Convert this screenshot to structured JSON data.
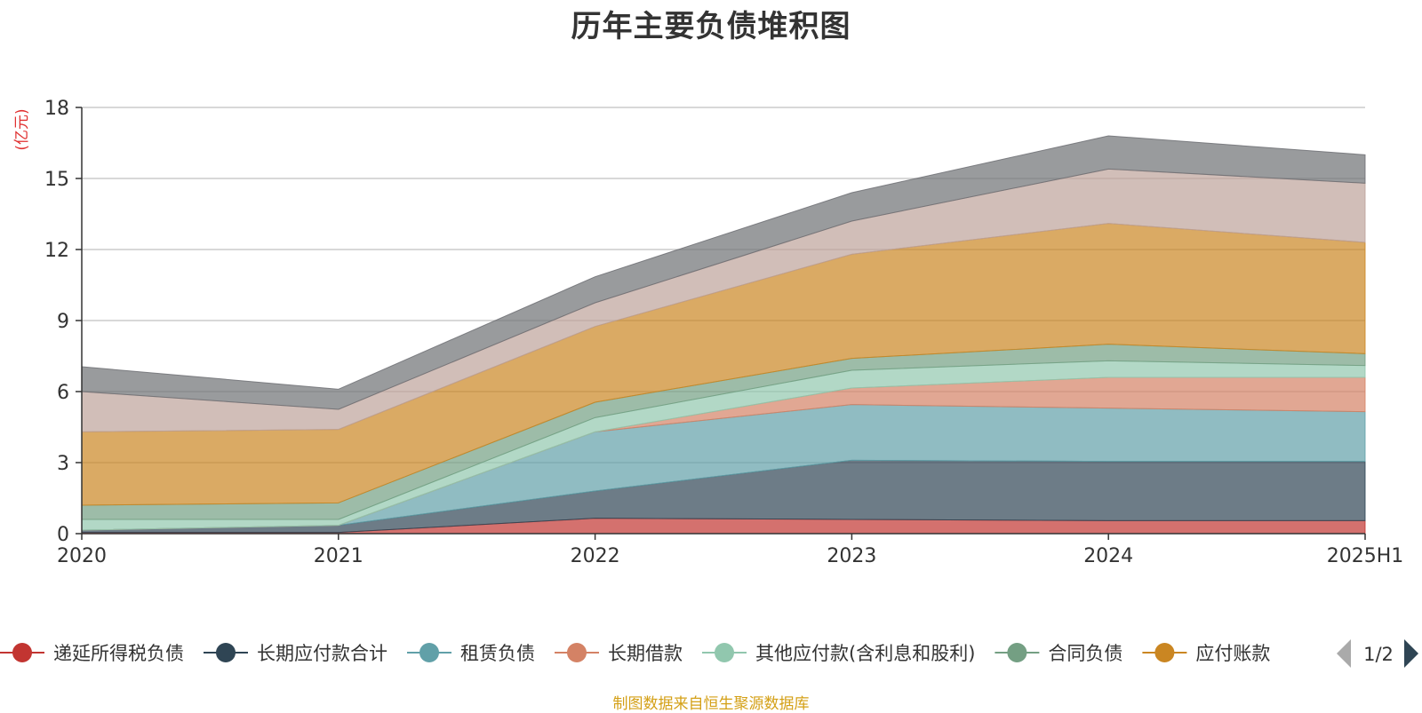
{
  "chart_data": {
    "type": "area",
    "stacked": true,
    "title": "历年主要负债堆积图",
    "ylabel": "(亿元)",
    "xlabel": "",
    "categories": [
      "2020",
      "2021",
      "2022",
      "2023",
      "2024",
      "2025H1"
    ],
    "ylim": [
      0,
      18
    ],
    "yticks": [
      0,
      3,
      6,
      9,
      12,
      15,
      18
    ],
    "grid": true,
    "series": [
      {
        "name": "递延所得税负债",
        "color": "#c23531",
        "values": [
          0.05,
          0.05,
          0.65,
          0.6,
          0.55,
          0.55
        ]
      },
      {
        "name": "长期应付款合计",
        "color": "#2f4554",
        "values": [
          0.1,
          0.3,
          1.15,
          2.5,
          2.5,
          2.5
        ]
      },
      {
        "name": "租赁负债",
        "color": "#61a0a8",
        "values": [
          0,
          0,
          2.5,
          2.35,
          2.25,
          2.1
        ]
      },
      {
        "name": "长期借款",
        "color": "#d48265",
        "values": [
          0,
          0,
          0,
          0.7,
          1.3,
          1.45
        ]
      },
      {
        "name": "其他应付款(含利息和股利)",
        "color": "#91c7ae",
        "values": [
          0.45,
          0.25,
          0.6,
          0.75,
          0.7,
          0.5
        ]
      },
      {
        "name": "合同负债",
        "color": "#749f83",
        "values": [
          0.6,
          0.7,
          0.65,
          0.5,
          0.7,
          0.5
        ]
      },
      {
        "name": "应付账款",
        "color": "#ca8622",
        "values": [
          3.1,
          3.1,
          3.2,
          4.4,
          5.1,
          4.7
        ]
      },
      {
        "name": "",
        "color": "#bda29a",
        "values": [
          1.7,
          0.85,
          1.0,
          1.4,
          2.3,
          2.5
        ]
      },
      {
        "name": "",
        "color": "#6e7074",
        "values": [
          1.05,
          0.85,
          1.1,
          1.2,
          1.4,
          1.2
        ]
      }
    ],
    "legend": {
      "position": "bottom",
      "visible_items": [
        "递延所得税负债",
        "长期应付款合计",
        "租赁负债",
        "长期借款",
        "其他应付款(含利息和股利)",
        "合同负债",
        "应付账款"
      ],
      "page": "1/2"
    }
  },
  "source_note": "制图数据来自恒生聚源数据库"
}
